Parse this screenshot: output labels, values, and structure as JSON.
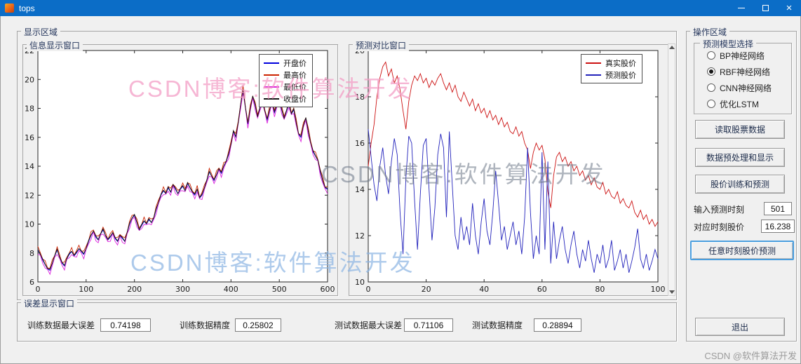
{
  "window": {
    "title": "tops"
  },
  "display_area": {
    "label": "显示区域"
  },
  "info_window": {
    "label": "信息显示窗口"
  },
  "compare_window": {
    "label": "预测对比窗口"
  },
  "error_window": {
    "label": "误差显示窗口",
    "fields": [
      {
        "label": "训练数据最大误差",
        "value": "0.74198"
      },
      {
        "label": "训练数据精度",
        "value": "0.25802"
      },
      {
        "label": "测试数据最大误差",
        "value": "0.71106"
      },
      {
        "label": "测试数据精度",
        "value": "0.28894"
      }
    ]
  },
  "operation": {
    "label": "操作区域",
    "model_group_label": "预测模型选择",
    "radios": [
      {
        "label": "BP神经网络",
        "selected": false
      },
      {
        "label": "RBF神经网络",
        "selected": true
      },
      {
        "label": "CNN神经网络",
        "selected": false
      },
      {
        "label": "优化LSTM",
        "selected": false
      }
    ],
    "buttons": {
      "read": "读取股票数据",
      "preprocess": "数据预处理和显示",
      "train": "股价训练和预测",
      "predict_any": "任意时刻股价预测",
      "exit": "退出"
    },
    "inputs": {
      "time_label": "输入预测时刻",
      "time_value": "501",
      "price_label": "对应时刻股价",
      "price_value": "16.238"
    }
  },
  "watermarks": {
    "top": "CSDN博客:软件算法开发",
    "middle": "CSDN博客:软件算法开发",
    "bottom": "CSDN博客:软件算法开发",
    "credit": "CSDN @软件算法开发"
  },
  "colors": {
    "titlebar": "#0b6dc7",
    "real_price": "#cc1111",
    "pred_price": "#2222bb"
  },
  "chart_data": [
    {
      "name": "info-display",
      "type": "line",
      "x_start": 0,
      "x_step": 5,
      "xlim": [
        0,
        600
      ],
      "ylim": [
        6,
        22
      ],
      "xticks": [
        0,
        100,
        200,
        300,
        400,
        500,
        600
      ],
      "yticks": [
        6,
        8,
        10,
        12,
        14,
        16,
        18,
        20,
        22
      ],
      "legend_position": "top-right",
      "grid": false,
      "base_values": [
        8.2,
        7.9,
        7.5,
        7.2,
        6.9,
        6.8,
        7.3,
        7.8,
        8.2,
        7.7,
        7.3,
        7.1,
        7.6,
        7.9,
        8.1,
        7.8,
        8.0,
        8.3,
        8.1,
        7.9,
        8.3,
        8.8,
        9.2,
        9.5,
        9.1,
        8.9,
        9.3,
        9.6,
        9.2,
        8.9,
        9.1,
        9.4,
        9.0,
        8.8,
        9.2,
        9.0,
        8.8,
        9.4,
        10.0,
        10.4,
        10.6,
        10.1,
        9.6,
        9.9,
        10.2,
        10.0,
        10.3,
        10.1,
        10.4,
        11.0,
        11.5,
        12.0,
        12.3,
        12.1,
        12.5,
        12.2,
        12.7,
        12.4,
        12.1,
        12.4,
        12.6,
        12.3,
        12.8,
        12.5,
        12.2,
        12.0,
        12.4,
        11.8,
        12.0,
        12.5,
        13.0,
        13.6,
        13.3,
        13.0,
        13.4,
        13.8,
        13.5,
        14.0,
        14.3,
        14.8,
        15.5,
        16.4,
        16.0,
        17.0,
        18.2,
        19.3,
        18.0,
        16.9,
        18.0,
        18.8,
        18.2,
        17.4,
        18.0,
        18.6,
        17.8,
        17.2,
        17.9,
        18.4,
        17.7,
        18.2,
        18.6,
        17.9,
        17.3,
        17.8,
        18.3,
        17.6,
        17.9,
        17.0,
        16.2,
        16.0,
        16.8,
        17.3,
        16.4,
        15.6,
        15.0,
        14.7,
        14.4,
        13.6,
        13.0,
        12.5,
        12.4
      ],
      "series": [
        {
          "name": "开盘价",
          "color": "#0000dd",
          "offset": 0
        },
        {
          "name": "最高价",
          "color": "#cc2200",
          "offset": 0.28
        },
        {
          "name": "最低价",
          "color": "#dd22dd",
          "offset": -0.3
        },
        {
          "name": "收盘价",
          "color": "#141414",
          "offset": 0.08
        }
      ]
    },
    {
      "name": "prediction-compare",
      "type": "line",
      "x_start": 0,
      "x_step": 1,
      "xlim": [
        0,
        100
      ],
      "ylim": [
        10,
        20
      ],
      "xticks": [
        0,
        20,
        40,
        60,
        80,
        100
      ],
      "yticks": [
        10,
        12,
        14,
        16,
        18,
        20
      ],
      "legend_position": "top-right",
      "grid": false,
      "series": [
        {
          "name": "真实股价",
          "color": "#cc1111",
          "values": [
            15.0,
            16.0,
            16.8,
            18.0,
            18.8,
            19.3,
            19.5,
            18.9,
            19.2,
            18.6,
            18.9,
            18.3,
            17.4,
            16.6,
            17.8,
            18.5,
            18.9,
            18.7,
            19.0,
            18.6,
            18.8,
            18.4,
            18.7,
            18.5,
            18.8,
            19.0,
            18.6,
            18.3,
            18.6,
            18.2,
            18.5,
            18.0,
            17.8,
            18.2,
            17.9,
            17.6,
            17.9,
            17.4,
            17.7,
            17.3,
            17.5,
            17.1,
            17.4,
            17.0,
            17.2,
            16.8,
            17.1,
            16.7,
            16.9,
            16.5,
            16.4,
            16.7,
            16.3,
            16.5,
            16.0,
            15.7,
            14.9,
            15.6,
            16.0,
            15.7,
            15.9,
            15.3,
            13.9,
            13.2,
            14.6,
            15.4,
            15.6,
            15.2,
            15.4,
            15.0,
            15.2,
            14.8,
            15.0,
            14.6,
            14.8,
            14.4,
            14.6,
            14.2,
            14.5,
            14.1,
            14.0,
            14.3,
            13.8,
            14.0,
            13.7,
            13.6,
            13.9,
            13.4,
            13.6,
            13.3,
            13.2,
            13.5,
            13.0,
            12.8,
            13.1,
            12.7,
            12.9,
            12.5,
            12.7,
            12.4,
            12.6
          ]
        },
        {
          "name": "预测股价",
          "color": "#2222bb",
          "values": [
            16.6,
            15.4,
            14.2,
            13.5,
            15.0,
            15.8,
            14.6,
            13.8,
            15.2,
            16.2,
            15.5,
            13.0,
            11.2,
            14.5,
            16.3,
            16.0,
            13.5,
            11.4,
            13.8,
            15.9,
            16.2,
            14.0,
            11.8,
            13.2,
            15.5,
            16.4,
            15.8,
            12.8,
            16.5,
            14.2,
            12.0,
            11.4,
            12.8,
            11.8,
            12.4,
            11.6,
            13.4,
            12.0,
            11.2,
            12.6,
            13.6,
            12.2,
            11.6,
            13.0,
            14.8,
            13.4,
            11.8,
            12.4,
            11.4,
            12.0,
            12.6,
            11.6,
            12.2,
            11.2,
            12.8,
            15.8,
            13.0,
            11.0,
            12.0,
            11.2,
            15.6,
            11.4,
            15.2,
            10.8,
            12.6,
            11.0,
            11.8,
            12.4,
            11.4,
            10.8,
            11.6,
            12.2,
            11.2,
            10.6,
            11.4,
            10.9,
            11.8,
            11.0,
            10.4,
            11.2,
            10.8,
            11.6,
            10.6,
            11.0,
            11.8,
            10.5,
            10.9,
            11.4,
            10.6,
            11.2,
            10.4,
            10.9,
            11.5,
            12.3,
            11.0,
            10.6,
            11.2,
            10.5,
            10.9,
            11.4,
            11.0
          ]
        }
      ]
    }
  ]
}
